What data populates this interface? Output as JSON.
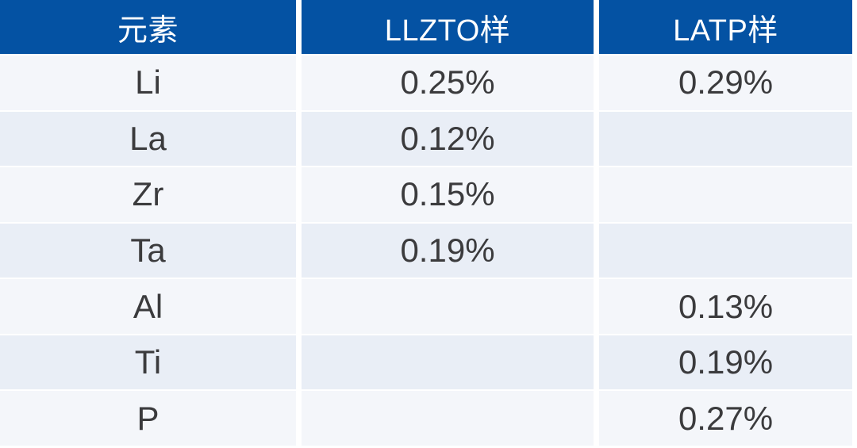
{
  "colors": {
    "header_bg": "#0452a3",
    "header_text": "#ffffff",
    "row_light": "#f4f6fa",
    "row_dark": "#e9eef6",
    "cell_text": "#3b3b3d",
    "gap": "#ffffff"
  },
  "table": {
    "headers": [
      "元素",
      "LLZTO样",
      "LATP样"
    ],
    "rows": [
      {
        "element": "Li",
        "llzto": "0.25%",
        "latp": "0.29%"
      },
      {
        "element": "La",
        "llzto": "0.12%",
        "latp": ""
      },
      {
        "element": "Zr",
        "llzto": "0.15%",
        "latp": ""
      },
      {
        "element": "Ta",
        "llzto": "0.19%",
        "latp": ""
      },
      {
        "element": "Al",
        "llzto": "",
        "latp": "0.13%"
      },
      {
        "element": "Ti",
        "llzto": "",
        "latp": "0.19%"
      },
      {
        "element": "P",
        "llzto": "",
        "latp": "0.27%"
      }
    ]
  },
  "chart_data": {
    "type": "table",
    "columns": [
      "元素",
      "LLZTO样",
      "LATP样"
    ],
    "rows": [
      [
        "Li",
        "0.25%",
        "0.29%"
      ],
      [
        "La",
        "0.12%",
        ""
      ],
      [
        "Zr",
        "0.15%",
        ""
      ],
      [
        "Ta",
        "0.19%",
        ""
      ],
      [
        "Al",
        "",
        "0.13%"
      ],
      [
        "Ti",
        "",
        "0.19%"
      ],
      [
        "P",
        "",
        "0.27%"
      ]
    ]
  }
}
